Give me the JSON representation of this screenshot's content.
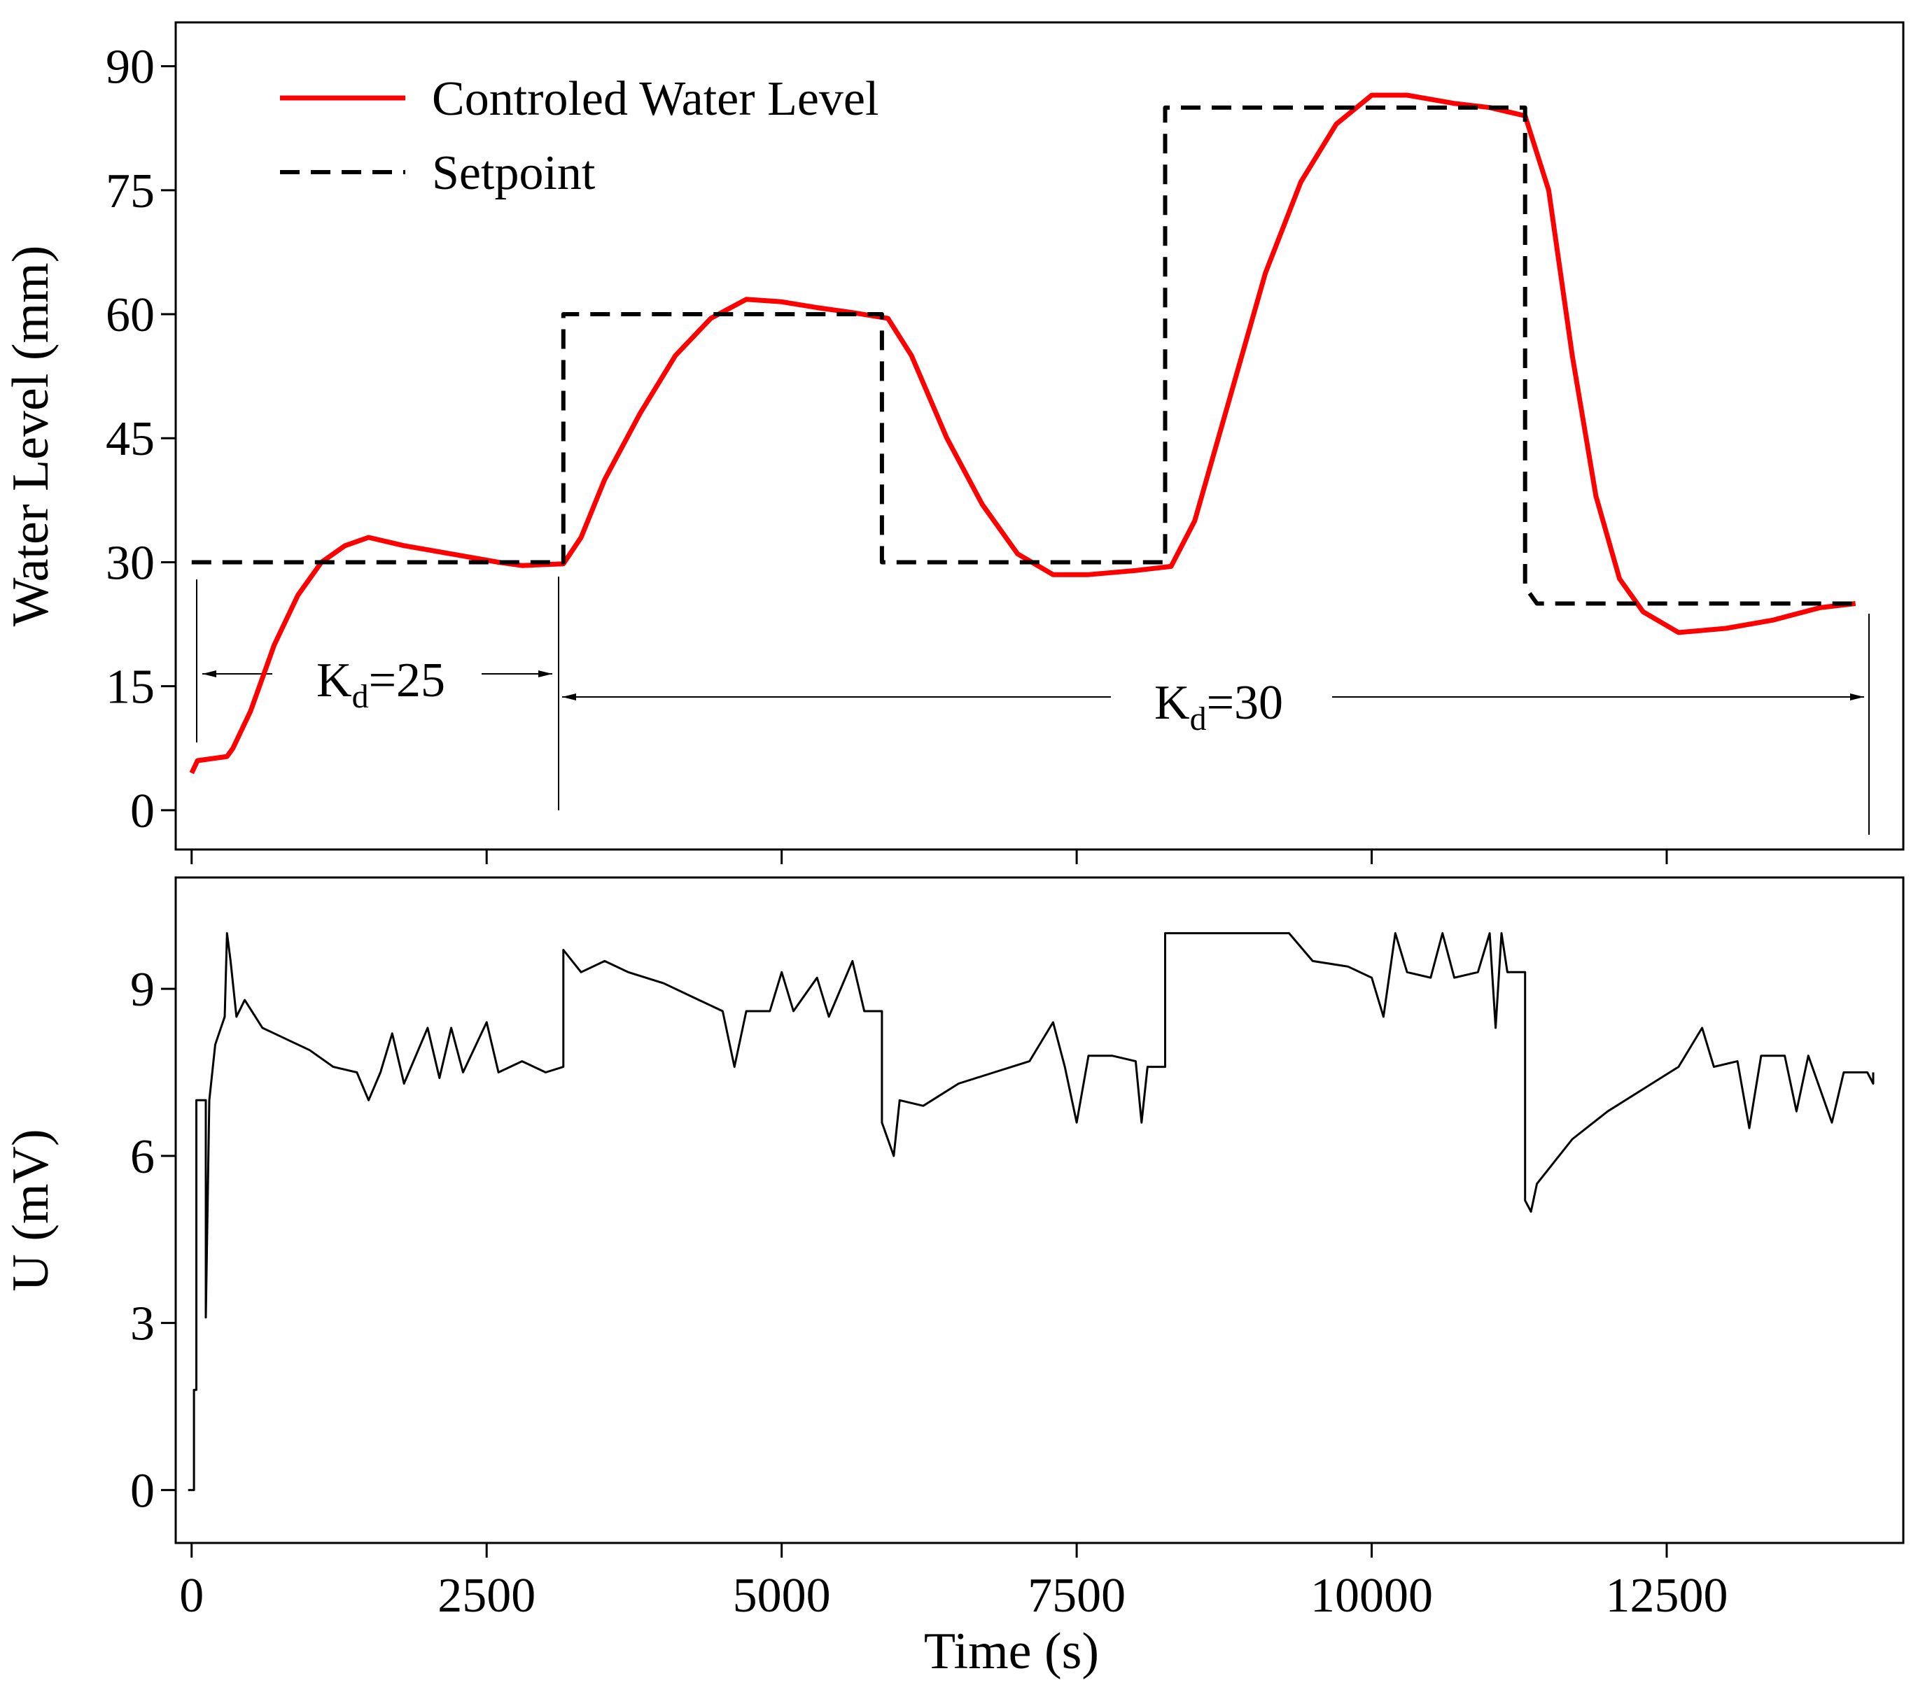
{
  "chart_data": [
    {
      "type": "line",
      "ylabel": "Water Level (mm)",
      "legend": "upper left",
      "xlim": [
        -135,
        14505
      ],
      "xticks": [
        0,
        2500,
        5000,
        7500,
        10000,
        12500
      ],
      "ylim": [
        -4.75,
        95.3
      ],
      "yticks": [
        0,
        15,
        30,
        45,
        60,
        75,
        90
      ],
      "series": [
        {
          "name": "Controled Water Level",
          "color": "#ff0000",
          "style": "solid",
          "x": [
            0,
            50,
            300,
            350,
            500,
            700,
            900,
            1100,
            1300,
            1500,
            1800,
            2200,
            2600,
            2800,
            3150,
            3300,
            3500,
            3800,
            4100,
            4400,
            4700,
            5000,
            5300,
            5600,
            5900,
            6100,
            6400,
            6700,
            7000,
            7300,
            7600,
            8000,
            8300,
            8500,
            8800,
            9100,
            9400,
            9700,
            10000,
            10300,
            10700,
            11000,
            11300,
            11500,
            11700,
            11900,
            12100,
            12300,
            12600,
            13000,
            13400,
            13800,
            14100
          ],
          "values": [
            4.5,
            6,
            6.5,
            7.5,
            12,
            20,
            26,
            30,
            32,
            33,
            32,
            31,
            30,
            29.6,
            29.8,
            33,
            40,
            48,
            55,
            59.5,
            61.8,
            61.5,
            60.8,
            60.2,
            59.5,
            55,
            45,
            37,
            31,
            28.5,
            28.5,
            29,
            29.5,
            35,
            50,
            65,
            76,
            83,
            86.5,
            86.5,
            85.5,
            85,
            84,
            75,
            55,
            38,
            28,
            24,
            21.5,
            22,
            23,
            24.5,
            25
          ]
        },
        {
          "name": "Setpoint",
          "color": "#000000",
          "style": "dashed",
          "x": [
            0,
            3150,
            3150,
            5850,
            5850,
            8250,
            8250,
            11300,
            11300,
            11400,
            14100
          ],
          "values": [
            30,
            30,
            60,
            60,
            30,
            30,
            85,
            85,
            27,
            25,
            25
          ]
        }
      ],
      "annotations": [
        {
          "parts": [
            "K",
            "d",
            "=25"
          ]
        },
        {
          "parts": [
            "K",
            "d",
            "=30"
          ]
        }
      ]
    },
    {
      "type": "line",
      "ylabel": "U (mV)",
      "xlabel": "Time (s)",
      "xlim": [
        -135,
        14505
      ],
      "xticks": [
        0,
        2500,
        5000,
        7500,
        10000,
        12500
      ],
      "ylim": [
        -0.95,
        11
      ],
      "yticks": [
        0,
        3,
        6,
        9
      ],
      "series": [
        {
          "color": "#000000",
          "style": "solid",
          "x": [
            -30,
            20,
            20,
            40,
            40,
            120,
            120,
            150,
            200,
            280,
            300,
            330,
            380,
            450,
            600,
            800,
            1000,
            1200,
            1400,
            1500,
            1600,
            1700,
            1800,
            2000,
            2100,
            2200,
            2300,
            2500,
            2600,
            2800,
            3000,
            3150,
            3150,
            3300,
            3500,
            3700,
            4000,
            4300,
            4500,
            4600,
            4700,
            4900,
            5000,
            5100,
            5300,
            5400,
            5600,
            5700,
            5850,
            5850,
            5950,
            6000,
            6200,
            6500,
            6800,
            7100,
            7300,
            7400,
            7500,
            7600,
            7800,
            8000,
            8050,
            8100,
            8250,
            8250,
            9300,
            9500,
            9800,
            10000,
            10100,
            10200,
            10300,
            10500,
            10600,
            10700,
            10900,
            11000,
            11050,
            11100,
            11150,
            11300,
            11300,
            11350,
            11400,
            11700,
            12000,
            12300,
            12600,
            12800,
            12900,
            13100,
            13200,
            13300,
            13500,
            13600,
            13700,
            13900,
            14000,
            14200,
            14250,
            14250
          ],
          "values": [
            0,
            0,
            1.8,
            1.8,
            7,
            7,
            3.1,
            7,
            8,
            8.5,
            10,
            9.5,
            8.5,
            8.8,
            8.3,
            8.1,
            7.9,
            7.6,
            7.5,
            7,
            7.5,
            8.2,
            7.3,
            8.3,
            7.4,
            8.3,
            7.5,
            8.4,
            7.5,
            7.7,
            7.5,
            7.6,
            9.7,
            9.3,
            9.5,
            9.3,
            9.1,
            8.8,
            8.6,
            7.6,
            8.6,
            8.6,
            9.3,
            8.6,
            9.2,
            8.5,
            9.5,
            8.6,
            8.6,
            6.6,
            6.0,
            7.0,
            6.9,
            7.3,
            7.5,
            7.7,
            8.4,
            7.6,
            6.6,
            7.8,
            7.8,
            7.7,
            6.6,
            7.6,
            7.6,
            10,
            10,
            9.5,
            9.4,
            9.2,
            8.5,
            10,
            9.3,
            9.2,
            10,
            9.2,
            9.3,
            10,
            8.3,
            10,
            9.3,
            9.3,
            5.2,
            5.0,
            5.5,
            6.3,
            6.8,
            7.2,
            7.6,
            8.3,
            7.6,
            7.7,
            6.5,
            7.8,
            7.8,
            6.8,
            7.8,
            6.6,
            7.5,
            7.5,
            7.3,
            7.5
          ]
        }
      ]
    }
  ]
}
